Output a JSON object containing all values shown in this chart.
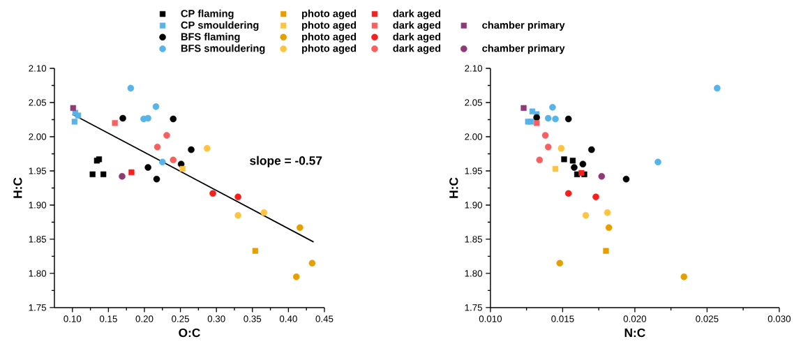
{
  "chart_data": [
    {
      "type": "scatter",
      "xlabel": "O:C",
      "ylabel": "H:C",
      "legend": "top",
      "xlim": [
        0.075,
        0.45
      ],
      "ylim": [
        1.75,
        2.1
      ],
      "xticks": [
        {
          "value": 0.1,
          "label": "0.10"
        },
        {
          "value": 0.15,
          "label": "0.15"
        },
        {
          "value": 0.2,
          "label": "0.20"
        },
        {
          "value": 0.25,
          "label": "0.25"
        },
        {
          "value": 0.3,
          "label": "0.30"
        },
        {
          "value": 0.35,
          "label": "0.35"
        },
        {
          "value": 0.4,
          "label": "0.40"
        },
        {
          "value": 0.45,
          "label": "0.45"
        }
      ],
      "yticks": [
        {
          "value": 1.75,
          "label": "1.75"
        },
        {
          "value": 1.8,
          "label": "1.80"
        },
        {
          "value": 1.85,
          "label": "1.85"
        },
        {
          "value": 1.9,
          "label": "1.90"
        },
        {
          "value": 1.95,
          "label": "1.95"
        },
        {
          "value": 2.0,
          "label": "2.00"
        },
        {
          "value": 2.05,
          "label": "2.05"
        },
        {
          "value": 2.1,
          "label": "2.10"
        }
      ],
      "annotations": [
        "slope = -0.57"
      ],
      "series": [
        {
          "name": "CP flaming",
          "color": "#000000",
          "marker": "square",
          "x": [
            0.128,
            0.143,
            0.134,
            0.137
          ],
          "values": [
            1.945,
            1.945,
            1.965,
            1.967
          ]
        },
        {
          "name": "CP smouldering",
          "color": "#56b4e9",
          "marker": "square",
          "x": [
            0.103,
            0.104,
            0.108
          ],
          "values": [
            2.022,
            2.035,
            2.031
          ]
        },
        {
          "name": "BFS flaming",
          "color": "#000000",
          "marker": "circle",
          "x": [
            0.17,
            0.24,
            0.265,
            0.251,
            0.205,
            0.217
          ],
          "values": [
            2.027,
            2.026,
            1.981,
            1.96,
            1.955,
            1.938
          ]
        },
        {
          "name": "BFS smouldering",
          "color": "#56b4e9",
          "marker": "circle",
          "x": [
            0.181,
            0.199,
            0.205,
            0.216,
            0.225
          ],
          "values": [
            2.071,
            2.026,
            2.027,
            2.044,
            1.963
          ]
        },
        {
          "name": "photo aged",
          "color": "#e69f00",
          "marker": "square",
          "x": [
            0.354
          ],
          "values": [
            1.833
          ]
        },
        {
          "name": "photo aged",
          "color": "#fdc444",
          "marker": "square",
          "x": [
            0.253
          ],
          "values": [
            1.953
          ]
        },
        {
          "name": "photo aged",
          "color": "#e69f00",
          "marker": "circle",
          "x": [
            0.416,
            0.433,
            0.411
          ],
          "values": [
            1.867,
            1.815,
            1.795
          ]
        },
        {
          "name": "photo aged",
          "color": "#fdc444",
          "marker": "circle",
          "x": [
            0.287,
            0.33,
            0.366
          ],
          "values": [
            1.983,
            1.885,
            1.889
          ]
        },
        {
          "name": "dark aged",
          "color": "#f71e1e",
          "marker": "square",
          "x": [
            0.182
          ],
          "values": [
            1.948
          ]
        },
        {
          "name": "dark aged",
          "color": "#f86060",
          "marker": "square",
          "x": [
            0.159
          ],
          "values": [
            2.02
          ]
        },
        {
          "name": "dark aged",
          "color": "#f71e1e",
          "marker": "circle",
          "x": [
            0.295,
            0.33
          ],
          "values": [
            1.917,
            1.912
          ]
        },
        {
          "name": "dark aged",
          "color": "#f86060",
          "marker": "circle",
          "x": [
            0.218,
            0.231,
            0.24
          ],
          "values": [
            1.985,
            2.002,
            1.966
          ]
        },
        {
          "name": "chamber primary",
          "color": "#8e3a76",
          "marker": "square",
          "x": [
            0.101
          ],
          "values": [
            2.042
          ]
        },
        {
          "name": "chamber primary",
          "color": "#8e3a76",
          "marker": "circle",
          "x": [
            0.169
          ],
          "values": [
            1.942
          ]
        },
        {
          "type": "line",
          "color": "#000000",
          "marker": "none",
          "x": [
            0.1,
            0.435
          ],
          "values": [
            2.033,
            1.846
          ]
        }
      ]
    },
    {
      "type": "scatter",
      "xlabel": "N:C",
      "ylabel": "H:C",
      "xlim": [
        0.01,
        0.03
      ],
      "ylim": [
        1.75,
        2.1
      ],
      "xticks": [
        {
          "value": 0.01,
          "label": "0.010"
        },
        {
          "value": 0.015,
          "label": "0.015"
        },
        {
          "value": 0.02,
          "label": "0.020"
        },
        {
          "value": 0.025,
          "label": "0.025"
        },
        {
          "value": 0.03,
          "label": "0.030"
        }
      ],
      "yticks": [
        {
          "value": 1.75,
          "label": "1.75"
        },
        {
          "value": 1.8,
          "label": "1.80"
        },
        {
          "value": 1.85,
          "label": "1.85"
        },
        {
          "value": 1.9,
          "label": "1.90"
        },
        {
          "value": 1.95,
          "label": "1.95"
        },
        {
          "value": 2.0,
          "label": "2.00"
        },
        {
          "value": 2.05,
          "label": "2.05"
        },
        {
          "value": 2.1,
          "label": "2.10"
        }
      ],
      "series": [
        {
          "color": "#000000",
          "marker": "square",
          "x": [
            0.0151,
            0.0157,
            0.016,
            0.0165
          ],
          "values": [
            1.967,
            1.965,
            1.945,
            1.945
          ]
        },
        {
          "color": "#56b4e9",
          "marker": "square",
          "x": [
            0.0126,
            0.0128,
            0.0129,
            0.0132
          ],
          "values": [
            2.022,
            2.022,
            2.037,
            2.033
          ]
        },
        {
          "color": "#000000",
          "marker": "circle",
          "x": [
            0.0132,
            0.0154,
            0.017,
            0.0164,
            0.0158,
            0.0194
          ],
          "values": [
            2.028,
            2.026,
            1.981,
            1.96,
            1.955,
            1.938
          ]
        },
        {
          "color": "#56b4e9",
          "marker": "circle",
          "x": [
            0.0143,
            0.014,
            0.0145,
            0.0257,
            0.0216
          ],
          "values": [
            2.043,
            2.027,
            2.026,
            2.071,
            1.963
          ]
        },
        {
          "color": "#e69f00",
          "marker": "square",
          "x": [
            0.018
          ],
          "values": [
            1.833
          ]
        },
        {
          "color": "#fdc444",
          "marker": "square",
          "x": [
            0.0145
          ],
          "values": [
            1.953
          ]
        },
        {
          "color": "#e69f00",
          "marker": "circle",
          "x": [
            0.0182,
            0.0148,
            0.0234
          ],
          "values": [
            1.867,
            1.815,
            1.795
          ]
        },
        {
          "color": "#fdc444",
          "marker": "circle",
          "x": [
            0.0149,
            0.0181,
            0.0166
          ],
          "values": [
            1.983,
            1.889,
            1.885
          ]
        },
        {
          "color": "#f71e1e",
          "marker": "square",
          "x": [
            0.0163
          ],
          "values": [
            1.947
          ]
        },
        {
          "color": "#f86060",
          "marker": "square",
          "x": [
            0.0132
          ],
          "values": [
            2.02
          ]
        },
        {
          "color": "#f71e1e",
          "marker": "circle",
          "x": [
            0.0154,
            0.0173
          ],
          "values": [
            1.917,
            1.912
          ]
        },
        {
          "color": "#f86060",
          "marker": "circle",
          "x": [
            0.0138,
            0.014,
            0.0134
          ],
          "values": [
            2.002,
            1.985,
            1.966
          ]
        },
        {
          "color": "#8e3a76",
          "marker": "square",
          "x": [
            0.0123
          ],
          "values": [
            2.042
          ]
        },
        {
          "color": "#8e3a76",
          "marker": "circle",
          "x": [
            0.0177
          ],
          "values": [
            1.942
          ]
        }
      ]
    }
  ]
}
